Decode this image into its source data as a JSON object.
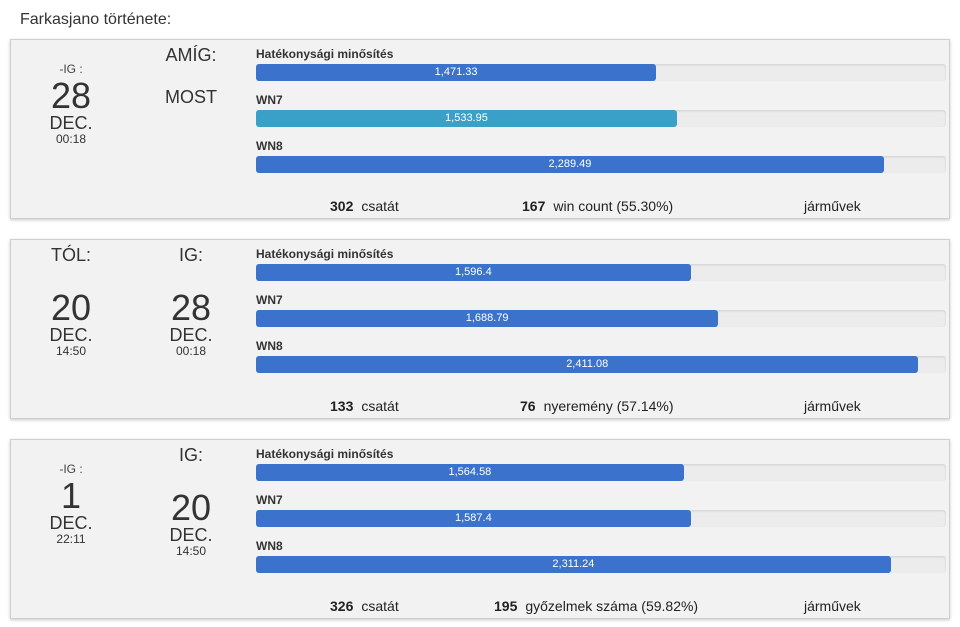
{
  "page": {
    "title": "Farkasjano története:"
  },
  "colors": {
    "bar_blue": "#3a72cc",
    "bar_teal": "#3aa0c8",
    "track": "#ececec"
  },
  "cards": [
    {
      "left": {
        "label": "-IG :",
        "day": "28",
        "month": "DEC.",
        "time": "00:18"
      },
      "right": {
        "label": "AMÍG:",
        "now": "MOST"
      },
      "metrics": [
        {
          "label": "Hatékonysági minősítés",
          "value": "1,471.33",
          "fill_pct": 58,
          "color": "#3a72cc"
        },
        {
          "label": "WN7",
          "value": "1,533.95",
          "fill_pct": 61,
          "color": "#3aa0c8"
        },
        {
          "label": "WN8",
          "value": "2,289.49",
          "fill_pct": 91,
          "color": "#3a72cc"
        }
      ],
      "stats": {
        "battles": "302",
        "battles_label": "csatát",
        "wins": "167",
        "wins_label": "win count (55.30%)",
        "vehicles_label": "járművek"
      }
    },
    {
      "left": {
        "label": "TÓL:",
        "day": "20",
        "month": "DEC.",
        "time": "14:50"
      },
      "right": {
        "label": "IG:",
        "day": "28",
        "month": "DEC.",
        "time": "00:18"
      },
      "metrics": [
        {
          "label": "Hatékonysági minősítés",
          "value": "1,596.4",
          "fill_pct": 63,
          "color": "#3a72cc"
        },
        {
          "label": "WN7",
          "value": "1,688.79",
          "fill_pct": 67,
          "color": "#3a72cc"
        },
        {
          "label": "WN8",
          "value": "2,411.08",
          "fill_pct": 96,
          "color": "#3a72cc"
        }
      ],
      "stats": {
        "battles": "133",
        "battles_label": "csatát",
        "wins": "76",
        "wins_label": "nyeremény (57.14%)",
        "vehicles_label": "járművek"
      }
    },
    {
      "left": {
        "label": "-IG :",
        "day": "1",
        "month": "DEC.",
        "time": "22:11"
      },
      "right": {
        "label": "IG:",
        "day": "20",
        "month": "DEC.",
        "time": "14:50"
      },
      "metrics": [
        {
          "label": "Hatékonysági minősítés",
          "value": "1,564.58",
          "fill_pct": 62,
          "color": "#3a72cc"
        },
        {
          "label": "WN7",
          "value": "1,587.4",
          "fill_pct": 63,
          "color": "#3a72cc"
        },
        {
          "label": "WN8",
          "value": "2,311.24",
          "fill_pct": 92,
          "color": "#3a72cc"
        }
      ],
      "stats": {
        "battles": "326",
        "battles_label": "csatát",
        "wins": "195",
        "wins_label": "győzelmek száma (59.82%)",
        "vehicles_label": "járművek"
      }
    }
  ]
}
